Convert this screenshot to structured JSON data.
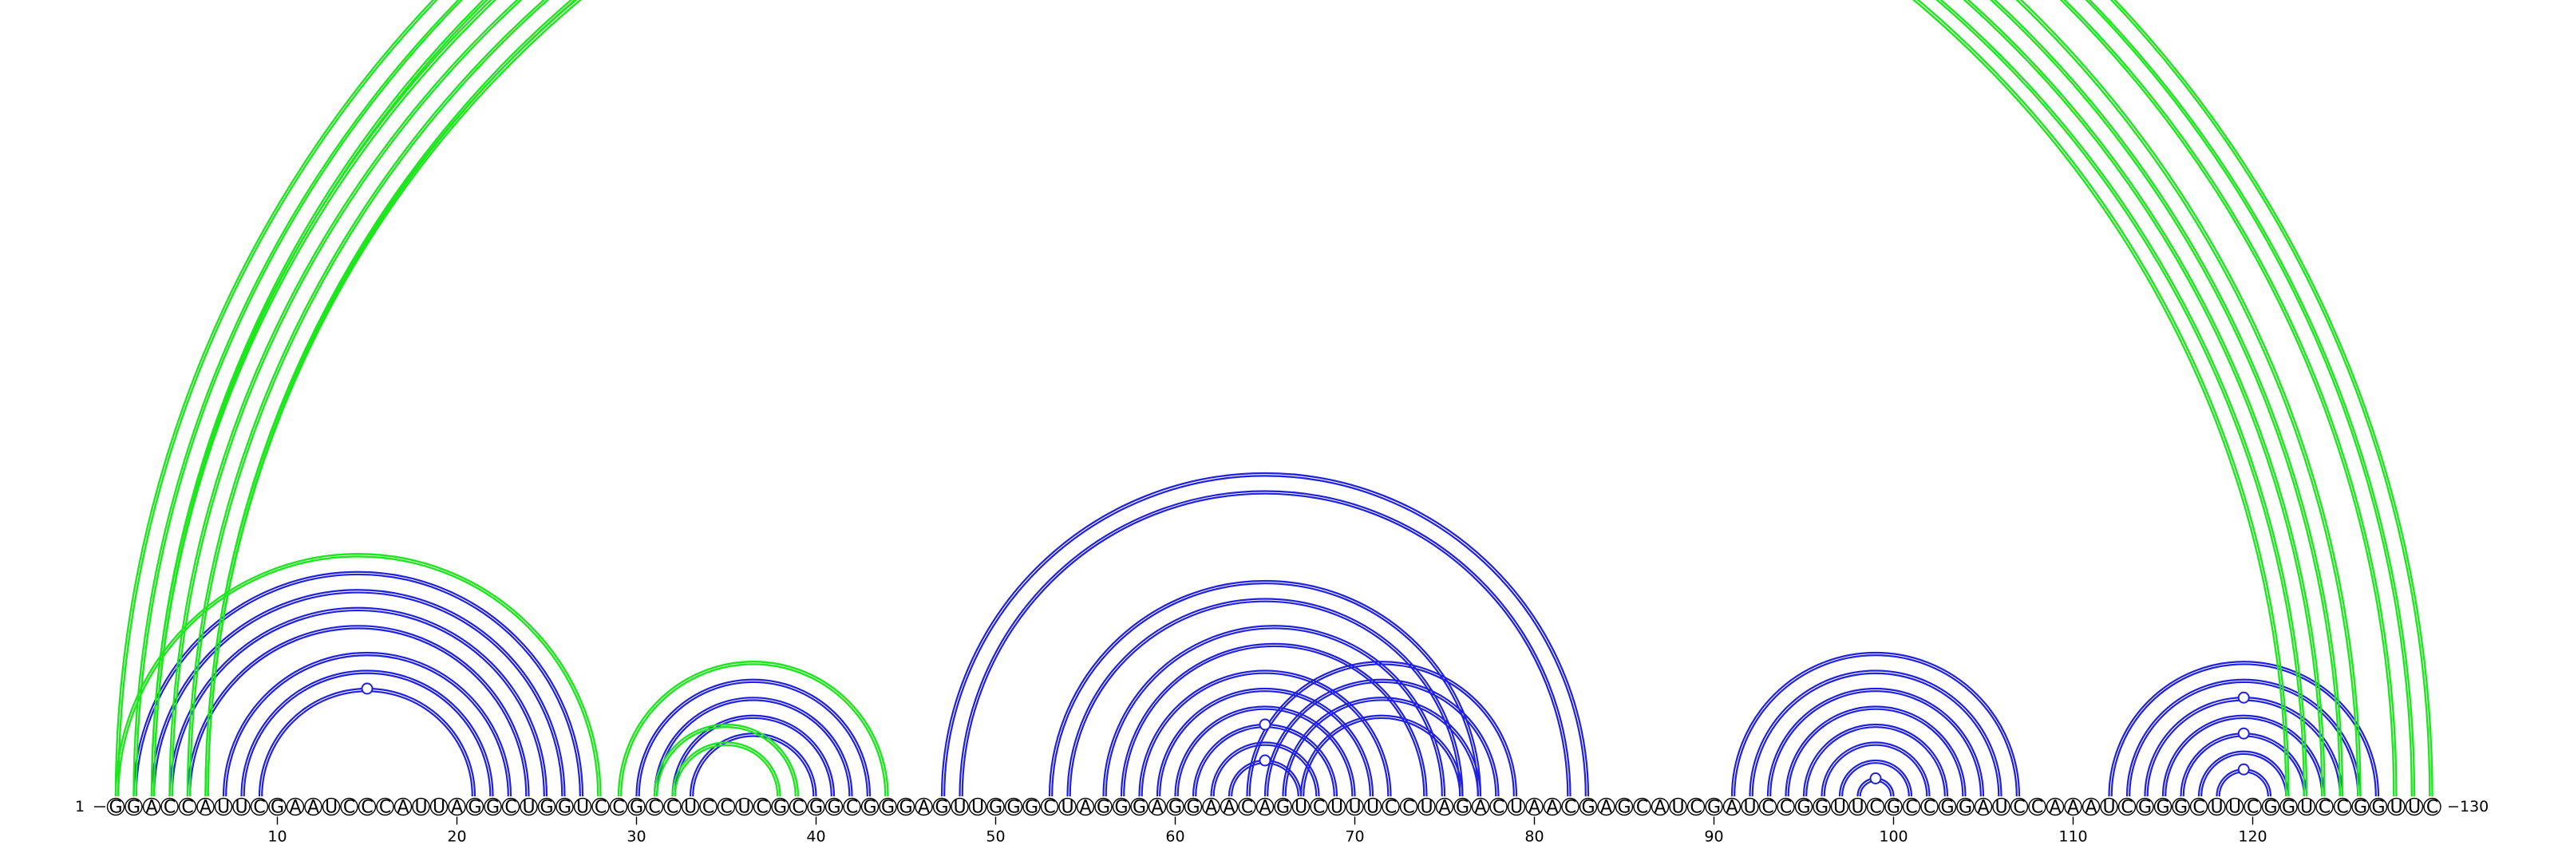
{
  "sequence": "GGACCAUUCGAAUCCCAUUAGGCUGGUCCGCCUCCUCGCGGCGGGAGUUGGGCUAGGGAGGAACAGUCUUUCCUAGACUAACGAGCAUCGAUCCGGUUCGCCGGAUCCAAAUCGGGCUUCGGUCCGGUUC",
  "start_label": "1",
  "end_label": "130",
  "ticks": [
    "10",
    "20",
    "30",
    "40",
    "50",
    "60",
    "70",
    "80",
    "90",
    "100",
    "110",
    "120"
  ],
  "colors": {
    "blue": "#2020e0",
    "green": "#1ee61e"
  },
  "arcs": [
    {
      "i": 2,
      "j": 27,
      "color": "blue"
    },
    {
      "i": 3,
      "j": 26,
      "color": "blue"
    },
    {
      "i": 4,
      "j": 25,
      "color": "blue"
    },
    {
      "i": 5,
      "j": 24,
      "color": "blue"
    },
    {
      "i": 7,
      "j": 23,
      "color": "blue"
    },
    {
      "i": 8,
      "j": 22,
      "color": "blue"
    },
    {
      "i": 9,
      "j": 21,
      "color": "blue"
    },
    {
      "i": 1,
      "j": 28,
      "color": "green"
    },
    {
      "i": 30,
      "j": 43,
      "color": "blue"
    },
    {
      "i": 31,
      "j": 42,
      "color": "blue"
    },
    {
      "i": 32,
      "j": 41,
      "color": "blue"
    },
    {
      "i": 33,
      "j": 40,
      "color": "blue"
    },
    {
      "i": 29,
      "j": 44,
      "color": "green"
    },
    {
      "i": 31,
      "j": 39,
      "color": "green"
    },
    {
      "i": 32,
      "j": 38,
      "color": "green"
    },
    {
      "i": 47,
      "j": 83,
      "color": "blue"
    },
    {
      "i": 48,
      "j": 82,
      "color": "blue"
    },
    {
      "i": 53,
      "j": 77,
      "color": "blue"
    },
    {
      "i": 54,
      "j": 76,
      "color": "blue"
    },
    {
      "i": 56,
      "j": 75,
      "color": "blue"
    },
    {
      "i": 57,
      "j": 74,
      "color": "blue"
    },
    {
      "i": 58,
      "j": 72,
      "color": "blue"
    },
    {
      "i": 59,
      "j": 71,
      "color": "blue"
    },
    {
      "i": 60,
      "j": 70,
      "color": "blue"
    },
    {
      "i": 61,
      "j": 69,
      "color": "blue"
    },
    {
      "i": 62,
      "j": 68,
      "color": "blue"
    },
    {
      "i": 63,
      "j": 67,
      "color": "blue"
    },
    {
      "i": 64,
      "j": 79,
      "color": "blue"
    },
    {
      "i": 65,
      "j": 78,
      "color": "blue"
    },
    {
      "i": 66,
      "j": 77,
      "color": "blue"
    },
    {
      "i": 67,
      "j": 76,
      "color": "blue"
    },
    {
      "i": 91,
      "j": 107,
      "color": "blue"
    },
    {
      "i": 92,
      "j": 106,
      "color": "blue"
    },
    {
      "i": 93,
      "j": 105,
      "color": "blue"
    },
    {
      "i": 94,
      "j": 104,
      "color": "blue"
    },
    {
      "i": 95,
      "j": 103,
      "color": "blue"
    },
    {
      "i": 96,
      "j": 102,
      "color": "blue"
    },
    {
      "i": 97,
      "j": 101,
      "color": "blue"
    },
    {
      "i": 98,
      "j": 100,
      "color": "blue"
    },
    {
      "i": 112,
      "j": 127,
      "color": "blue"
    },
    {
      "i": 113,
      "j": 126,
      "color": "blue"
    },
    {
      "i": 114,
      "j": 125,
      "color": "blue"
    },
    {
      "i": 115,
      "j": 124,
      "color": "blue"
    },
    {
      "i": 116,
      "j": 123,
      "color": "blue"
    },
    {
      "i": 117,
      "j": 122,
      "color": "blue"
    },
    {
      "i": 118,
      "j": 121,
      "color": "blue"
    },
    {
      "i": 1,
      "j": 130,
      "color": "green"
    },
    {
      "i": 2,
      "j": 129,
      "color": "green"
    },
    {
      "i": 3,
      "j": 128,
      "color": "green"
    },
    {
      "i": 3,
      "j": 126,
      "color": "green"
    },
    {
      "i": 4,
      "j": 125,
      "color": "green"
    },
    {
      "i": 5,
      "j": 124,
      "color": "green"
    },
    {
      "i": 6,
      "j": 123,
      "color": "green"
    },
    {
      "i": 6,
      "j": 122,
      "color": "green"
    }
  ]
}
